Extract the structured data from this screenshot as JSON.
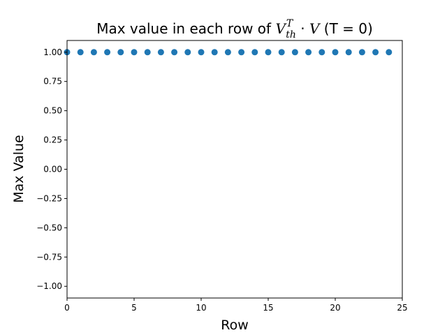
{
  "chart_data": {
    "type": "scatter",
    "title": {
      "prefix": "Max value in each row of ",
      "math_base": "V",
      "math_sup": "T",
      "math_sub": "th",
      "math_op": " · ",
      "math_var": "V",
      "suffix": " (T = 0)"
    },
    "xlabel": "Row",
    "ylabel": "Max Value",
    "xlim": [
      0,
      25
    ],
    "ylim": [
      -1.1,
      1.1
    ],
    "xticks": [
      0,
      5,
      10,
      15,
      20,
      25
    ],
    "yticks": [
      -1.0,
      -0.75,
      -0.5,
      -0.25,
      0.0,
      0.25,
      0.5,
      0.75,
      1.0
    ],
    "ytick_labels": [
      "−1.00",
      "−0.75",
      "−0.50",
      "−0.25",
      "0.00",
      "0.25",
      "0.50",
      "0.75",
      "1.00"
    ],
    "grid": false,
    "marker_color": "#1f77b4",
    "series": [
      {
        "x": [
          0,
          1,
          2,
          3,
          4,
          5,
          6,
          7,
          8,
          9,
          10,
          11,
          12,
          13,
          14,
          15,
          16,
          17,
          18,
          19,
          20,
          21,
          22,
          23,
          24
        ],
        "y": [
          1,
          1,
          1,
          1,
          1,
          1,
          1,
          1,
          1,
          1,
          1,
          1,
          1,
          1,
          1,
          1,
          1,
          1,
          1,
          1,
          1,
          1,
          1,
          1,
          1
        ]
      }
    ]
  }
}
